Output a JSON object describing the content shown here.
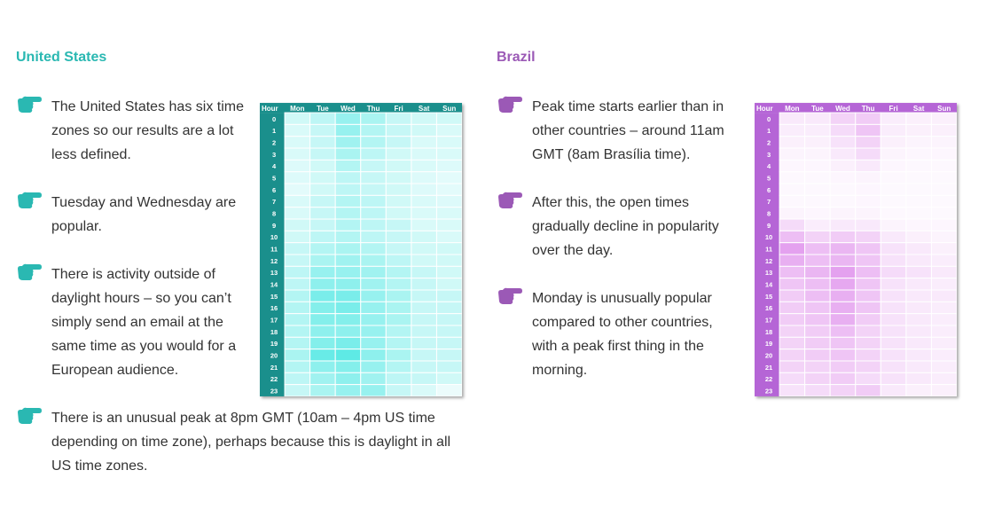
{
  "us": {
    "heading": "United States",
    "color": "#2ab8b2",
    "bullets": [
      {
        "lines": [
          "The United States has six time",
          "zones so our results are a lot",
          "less defined."
        ]
      },
      {
        "lines": [
          "Tuesday and Wednesday are",
          "popular."
        ]
      },
      {
        "lines": [
          "There is activity outside of",
          "daylight hours – so you can’t",
          "simply send an email at the",
          "same time as you would for a",
          "European audience."
        ]
      },
      {
        "lines": [
          "There is an unusual peak at 8pm GMT (10am – 4pm US time",
          "depending on time zone), perhaps because this is daylight in all",
          "US time zones."
        ]
      }
    ],
    "heatmap": {
      "header_color": "#1a8f8c",
      "cell_rgb": [
        66,
        230,
        225
      ],
      "hour_label": "Hour",
      "days": [
        "Mon",
        "Tue",
        "Wed",
        "Thu",
        "Fri",
        "Sat",
        "Sun"
      ],
      "hours": [
        "0",
        "1",
        "2",
        "3",
        "4",
        "5",
        "6",
        "7",
        "8",
        "9",
        "10",
        "11",
        "12",
        "13",
        "14",
        "15",
        "16",
        "17",
        "18",
        "19",
        "20",
        "21",
        "22",
        "23"
      ],
      "values": [
        [
          0.25,
          0.35,
          0.55,
          0.45,
          0.3,
          0.25,
          0.25
        ],
        [
          0.2,
          0.3,
          0.55,
          0.4,
          0.3,
          0.25,
          0.2
        ],
        [
          0.2,
          0.3,
          0.5,
          0.4,
          0.3,
          0.2,
          0.2
        ],
        [
          0.2,
          0.3,
          0.45,
          0.35,
          0.25,
          0.2,
          0.2
        ],
        [
          0.18,
          0.25,
          0.4,
          0.3,
          0.25,
          0.2,
          0.18
        ],
        [
          0.18,
          0.25,
          0.35,
          0.3,
          0.25,
          0.18,
          0.15
        ],
        [
          0.15,
          0.25,
          0.35,
          0.3,
          0.25,
          0.18,
          0.15
        ],
        [
          0.2,
          0.3,
          0.4,
          0.35,
          0.25,
          0.2,
          0.18
        ],
        [
          0.2,
          0.3,
          0.4,
          0.35,
          0.25,
          0.2,
          0.2
        ],
        [
          0.25,
          0.3,
          0.4,
          0.35,
          0.3,
          0.2,
          0.2
        ],
        [
          0.25,
          0.35,
          0.4,
          0.35,
          0.3,
          0.25,
          0.2
        ],
        [
          0.3,
          0.4,
          0.45,
          0.4,
          0.3,
          0.25,
          0.25
        ],
        [
          0.3,
          0.45,
          0.5,
          0.45,
          0.35,
          0.25,
          0.25
        ],
        [
          0.35,
          0.55,
          0.55,
          0.5,
          0.4,
          0.3,
          0.25
        ],
        [
          0.35,
          0.6,
          0.6,
          0.5,
          0.4,
          0.3,
          0.25
        ],
        [
          0.4,
          0.7,
          0.7,
          0.55,
          0.45,
          0.3,
          0.3
        ],
        [
          0.4,
          0.65,
          0.7,
          0.55,
          0.45,
          0.3,
          0.3
        ],
        [
          0.4,
          0.65,
          0.65,
          0.55,
          0.45,
          0.3,
          0.3
        ],
        [
          0.4,
          0.6,
          0.6,
          0.55,
          0.4,
          0.3,
          0.3
        ],
        [
          0.4,
          0.65,
          0.7,
          0.55,
          0.4,
          0.3,
          0.3
        ],
        [
          0.45,
          0.8,
          0.85,
          0.6,
          0.45,
          0.3,
          0.3
        ],
        [
          0.4,
          0.6,
          0.65,
          0.55,
          0.4,
          0.3,
          0.3
        ],
        [
          0.35,
          0.5,
          0.6,
          0.5,
          0.35,
          0.3,
          0.25
        ],
        [
          0.3,
          0.45,
          0.55,
          0.55,
          0.3,
          0.2,
          0.1
        ]
      ]
    }
  },
  "brazil": {
    "heading": "Brazil",
    "color": "#9b59b6",
    "bullets": [
      {
        "lines": [
          "Peak time starts earlier than in",
          "other countries – around 11am",
          "GMT (8am Brasília time)."
        ]
      },
      {
        "lines": [
          "After this, the open times",
          "gradually decline in popularity",
          "over the day."
        ]
      },
      {
        "lines": [
          "Monday is unusually popular",
          "compared to other countries,",
          "with a peak first thing in the",
          "morning."
        ]
      }
    ],
    "heatmap": {
      "header_color": "#b565d6",
      "cell_rgb": [
        214,
        110,
        230
      ],
      "hour_label": "Hour",
      "days": [
        "Mon",
        "Tue",
        "Wed",
        "Thu",
        "Fri",
        "Sat",
        "Sun"
      ],
      "hours": [
        "0",
        "1",
        "2",
        "3",
        "4",
        "5",
        "6",
        "7",
        "8",
        "9",
        "10",
        "11",
        "12",
        "13",
        "14",
        "15",
        "16",
        "17",
        "18",
        "19",
        "20",
        "21",
        "22",
        "23"
      ],
      "values": [
        [
          0.15,
          0.15,
          0.3,
          0.35,
          0.12,
          0.1,
          0.1
        ],
        [
          0.12,
          0.12,
          0.25,
          0.4,
          0.12,
          0.1,
          0.1
        ],
        [
          0.1,
          0.1,
          0.2,
          0.3,
          0.1,
          0.08,
          0.08
        ],
        [
          0.08,
          0.08,
          0.15,
          0.25,
          0.08,
          0.06,
          0.06
        ],
        [
          0.06,
          0.06,
          0.1,
          0.15,
          0.06,
          0.05,
          0.05
        ],
        [
          0.05,
          0.05,
          0.06,
          0.08,
          0.05,
          0.04,
          0.04
        ],
        [
          0.05,
          0.05,
          0.05,
          0.06,
          0.04,
          0.04,
          0.04
        ],
        [
          0.05,
          0.05,
          0.05,
          0.06,
          0.04,
          0.04,
          0.04
        ],
        [
          0.08,
          0.06,
          0.08,
          0.08,
          0.05,
          0.04,
          0.04
        ],
        [
          0.25,
          0.12,
          0.15,
          0.15,
          0.08,
          0.06,
          0.06
        ],
        [
          0.45,
          0.3,
          0.35,
          0.3,
          0.15,
          0.1,
          0.08
        ],
        [
          0.65,
          0.45,
          0.5,
          0.4,
          0.2,
          0.15,
          0.1
        ],
        [
          0.55,
          0.45,
          0.5,
          0.4,
          0.2,
          0.15,
          0.12
        ],
        [
          0.45,
          0.5,
          0.65,
          0.45,
          0.25,
          0.2,
          0.15
        ],
        [
          0.4,
          0.45,
          0.6,
          0.4,
          0.2,
          0.15,
          0.12
        ],
        [
          0.35,
          0.45,
          0.55,
          0.4,
          0.2,
          0.15,
          0.15
        ],
        [
          0.35,
          0.4,
          0.55,
          0.4,
          0.2,
          0.15,
          0.12
        ],
        [
          0.35,
          0.4,
          0.55,
          0.35,
          0.2,
          0.15,
          0.12
        ],
        [
          0.3,
          0.35,
          0.45,
          0.3,
          0.2,
          0.15,
          0.12
        ],
        [
          0.3,
          0.35,
          0.4,
          0.3,
          0.2,
          0.15,
          0.12
        ],
        [
          0.3,
          0.35,
          0.4,
          0.3,
          0.2,
          0.15,
          0.12
        ],
        [
          0.3,
          0.3,
          0.35,
          0.3,
          0.2,
          0.15,
          0.12
        ],
        [
          0.25,
          0.3,
          0.35,
          0.25,
          0.2,
          0.15,
          0.12
        ],
        [
          0.2,
          0.25,
          0.3,
          0.35,
          0.15,
          0.1,
          0.1
        ]
      ]
    }
  }
}
